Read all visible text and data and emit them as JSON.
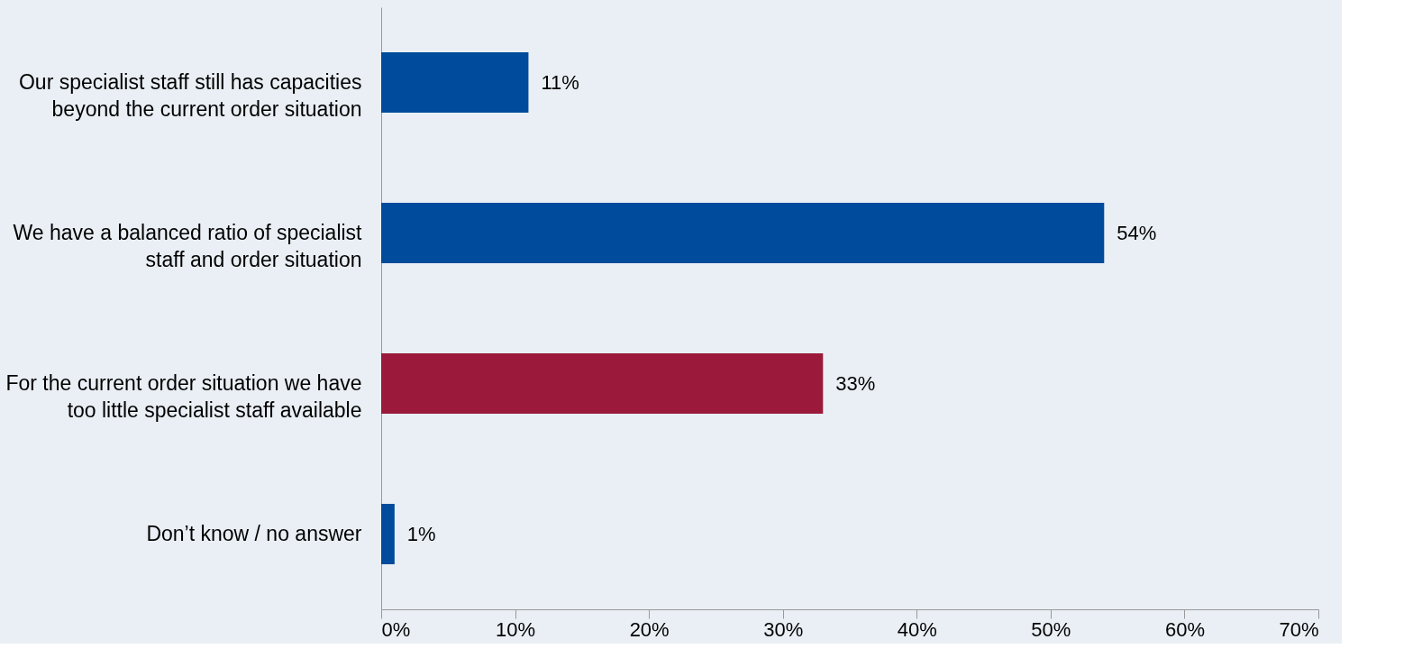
{
  "chart_data": {
    "type": "bar",
    "orientation": "horizontal",
    "categories": [
      "Our specialist staff still has capacities\nbeyond the current order situation",
      "We have a balanced ratio of specialist\nstaff and order situation",
      "For the current order situation we have\ntoo little specialist staff available",
      "Don’t know / no answer"
    ],
    "values": [
      11,
      54,
      33,
      1
    ],
    "colors": [
      "#004b9b",
      "#004b9b",
      "#9b1a3c",
      "#004b9b"
    ],
    "value_labels": [
      "11%",
      "54%",
      "33%",
      "1%"
    ],
    "xlim": [
      0,
      70
    ],
    "xticks": [
      {
        "value": 0,
        "label": "0%"
      },
      {
        "value": 10,
        "label": "10%"
      },
      {
        "value": 20,
        "label": "20%"
      },
      {
        "value": 30,
        "label": "30%"
      },
      {
        "value": 40,
        "label": "40%"
      },
      {
        "value": 50,
        "label": "50%"
      },
      {
        "value": 60,
        "label": "60%"
      },
      {
        "value": 70,
        "label": "70%"
      }
    ],
    "grid": false
  }
}
